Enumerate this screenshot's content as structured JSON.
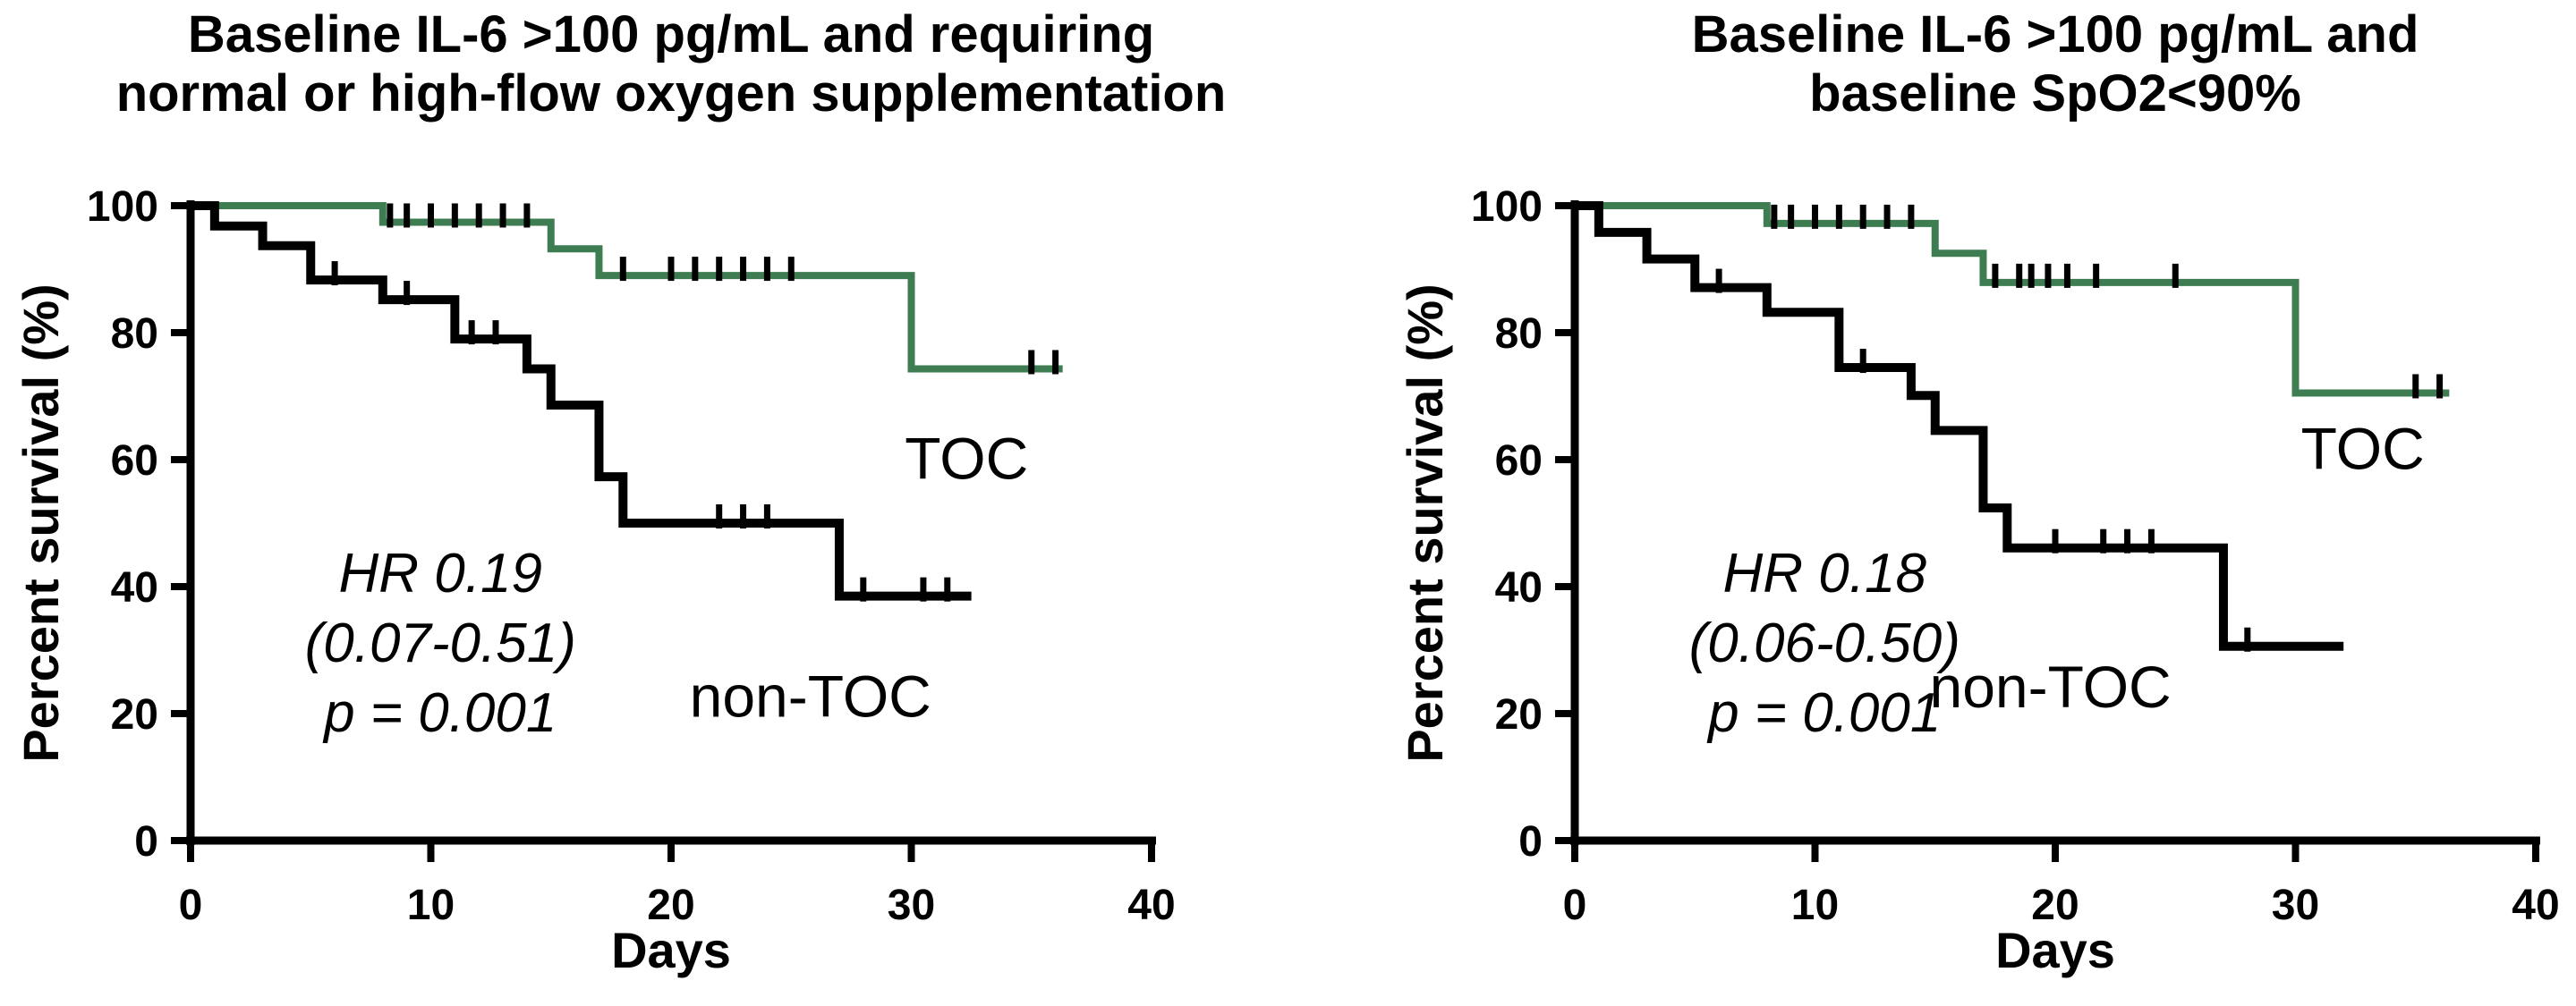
{
  "figure": {
    "background": "#ffffff",
    "axis_color": "#000000",
    "censor_tick_color": "#000000"
  },
  "chart_data": [
    {
      "type": "line",
      "subtype": "kaplan-meier-step",
      "title_lines": [
        "Baseline IL-6 >100 pg/mL and requiring",
        "normal or high-flow oxygen supplementation"
      ],
      "xlabel": "Days",
      "ylabel": "Percent survival (%)",
      "xlim": [
        0,
        40
      ],
      "xticks": [
        0,
        10,
        20,
        30,
        40
      ],
      "ylim": [
        0,
        100
      ],
      "yticks": [
        0,
        20,
        40,
        60,
        80,
        100
      ],
      "grid": false,
      "legend_position": "inline-labels",
      "annotation": {
        "lines": [
          "HR 0.19",
          "(0.07-0.51)",
          "p = 0.001"
        ],
        "x_day": 10.4,
        "y_percent": 42,
        "line_spacing_percent": 11
      },
      "series": [
        {
          "name": "TOC",
          "color": "#3E7C52",
          "label": "TOC",
          "label_color": "#00A551",
          "label_day": 32.3,
          "label_percent": 57,
          "steps": [
            [
              0,
              100
            ],
            [
              8,
              97.4
            ],
            [
              15,
              93.2
            ],
            [
              17,
              89
            ],
            [
              30,
              74.3
            ]
          ],
          "end_day": 36.3,
          "censor_days": [
            8.3,
            9,
            10,
            11,
            12,
            13,
            14,
            18,
            20,
            21,
            22,
            23,
            24,
            25,
            35,
            36
          ]
        },
        {
          "name": "non-TOC",
          "color": "#000000",
          "label": "non-TOC",
          "label_color": "#000000",
          "label_day": 25.8,
          "label_percent": 19.5,
          "steps": [
            [
              0,
              100
            ],
            [
              1,
              96.8
            ],
            [
              3,
              93.7
            ],
            [
              5,
              88.3
            ],
            [
              8,
              85.2
            ],
            [
              11,
              79
            ],
            [
              14,
              74.3
            ],
            [
              15,
              68.6
            ],
            [
              17,
              57.3
            ],
            [
              18,
              50
            ],
            [
              27,
              38.5
            ]
          ],
          "end_day": 32.5,
          "censor_days": [
            6,
            9,
            11.7,
            12.7,
            22,
            23,
            24,
            28,
            30.5,
            31.5
          ]
        }
      ]
    },
    {
      "type": "line",
      "subtype": "kaplan-meier-step",
      "title_lines": [
        "Baseline IL-6 >100 pg/mL and",
        "baseline SpO2<90%"
      ],
      "xlabel": "Days",
      "ylabel": "Percent survival (%)",
      "xlim": [
        0,
        40
      ],
      "xticks": [
        0,
        10,
        20,
        30,
        40
      ],
      "ylim": [
        0,
        100
      ],
      "yticks": [
        0,
        20,
        40,
        60,
        80,
        100
      ],
      "grid": false,
      "legend_position": "inline-labels",
      "annotation": {
        "lines": [
          "HR 0.18",
          "(0.06-0.50)",
          "p = 0.001"
        ],
        "x_day": 10.4,
        "y_percent": 42,
        "line_spacing_percent": 11
      },
      "series": [
        {
          "name": "TOC",
          "color": "#3E7C52",
          "label": "TOC",
          "label_color": "#00A551",
          "label_day": 32.8,
          "label_percent": 58.5,
          "steps": [
            [
              0,
              100
            ],
            [
              8,
              97.2
            ],
            [
              15,
              92.5
            ],
            [
              17,
              87.9
            ],
            [
              30,
              70.5
            ]
          ],
          "end_day": 36.4,
          "censor_days": [
            8.3,
            9,
            10,
            11,
            12,
            13,
            14,
            17.5,
            18.5,
            19,
            19.7,
            20.5,
            21.7,
            25,
            35,
            36
          ]
        },
        {
          "name": "non-TOC",
          "color": "#000000",
          "label": "non-TOC",
          "label_color": "#000000",
          "label_day": 19.8,
          "label_percent": 21,
          "steps": [
            [
              0,
              100
            ],
            [
              1,
              95.8
            ],
            [
              3,
              91.6
            ],
            [
              5,
              87.1
            ],
            [
              8,
              83.2
            ],
            [
              11,
              74.5
            ],
            [
              14,
              70.1
            ],
            [
              15,
              64.6
            ],
            [
              17,
              52.4
            ],
            [
              18,
              46.1
            ],
            [
              27,
              30.6
            ]
          ],
          "end_day": 32,
          "censor_days": [
            6,
            12,
            20,
            22,
            23,
            24,
            28
          ]
        }
      ]
    }
  ]
}
